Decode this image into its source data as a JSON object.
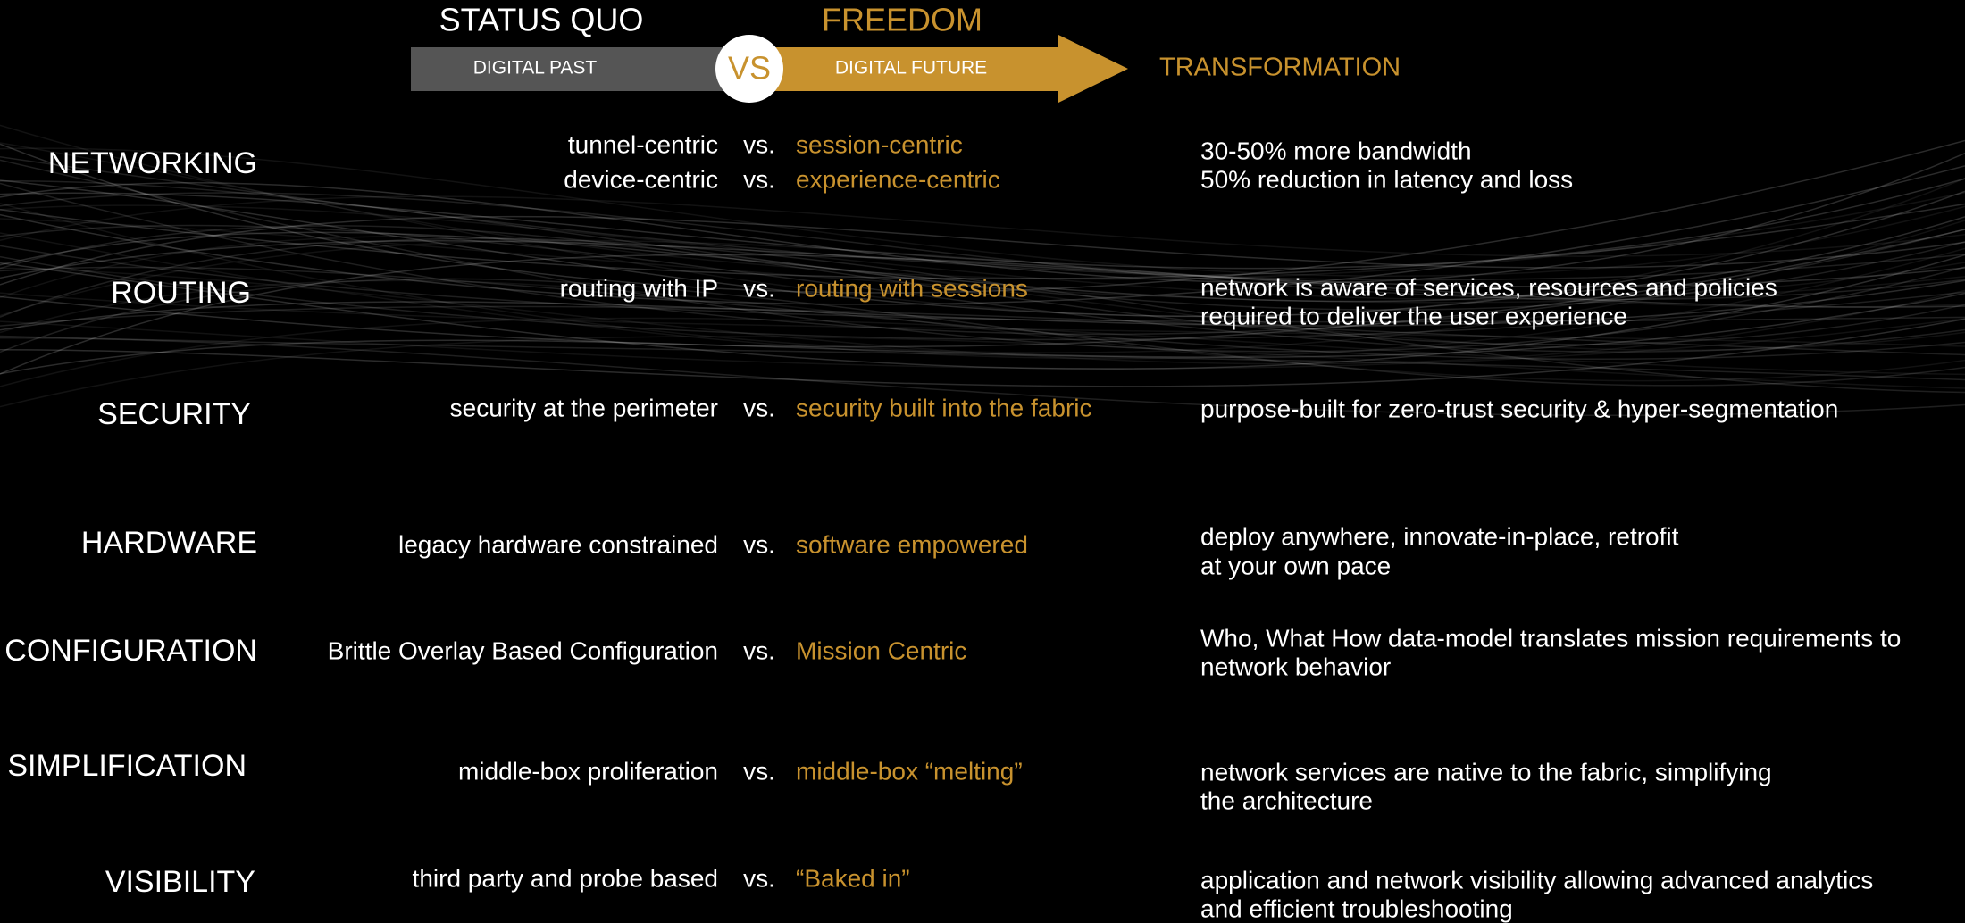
{
  "header": {
    "status_quo": "STATUS QUO",
    "freedom": "FREEDOM",
    "digital_past": "DIGITAL PAST",
    "vs": "VS",
    "digital_future": "DIGITAL FUTURE",
    "transformation": "TRANSFORMATION"
  },
  "rows": [
    {
      "label": "NETWORKING",
      "comparisons": [
        {
          "past": "tunnel-centric",
          "vs": "vs.",
          "future": "session-centric"
        },
        {
          "past": "device-centric",
          "vs": "vs.",
          "future": "experience-centric"
        }
      ],
      "transformation": [
        "30-50% more bandwidth",
        "50% reduction in latency and loss"
      ]
    },
    {
      "label": "ROUTING",
      "comparisons": [
        {
          "past": "routing with IP",
          "vs": "vs.",
          "future": "routing with sessions"
        }
      ],
      "transformation": [
        "network is aware of services, resources and policies",
        "required to deliver the user experience"
      ]
    },
    {
      "label": "SECURITY",
      "comparisons": [
        {
          "past": "security at the perimeter",
          "vs": "vs.",
          "future": "security built into the fabric"
        }
      ],
      "transformation": [
        "purpose-built for zero-trust security & hyper-segmentation"
      ]
    },
    {
      "label": "HARDWARE",
      "comparisons": [
        {
          "past": "legacy hardware constrained",
          "vs": "vs.",
          "future": "software empowered"
        }
      ],
      "transformation": [
        "deploy anywhere, innovate-in-place, retrofit",
        "at your own pace"
      ]
    },
    {
      "label": "CONFIGURATION",
      "comparisons": [
        {
          "past": "Brittle Overlay Based Configuration",
          "vs": "vs.",
          "future": "Mission Centric"
        }
      ],
      "transformation": [
        "Who, What How data-model translates mission requirements to",
        "network behavior"
      ]
    },
    {
      "label": "SIMPLIFICATION",
      "comparisons": [
        {
          "past": "middle-box proliferation",
          "vs": "vs.",
          "future": "middle-box “melting”"
        }
      ],
      "transformation": [
        "network services are native to the fabric, simplifying",
        "the architecture"
      ]
    },
    {
      "label": "VISIBILITY",
      "comparisons": [
        {
          "past": "third party and probe based",
          "vs": "vs.",
          "future": "“Baked in”"
        }
      ],
      "transformation": [
        "application and network visibility allowing advanced analytics",
        "and efficient troubleshooting"
      ]
    }
  ]
}
